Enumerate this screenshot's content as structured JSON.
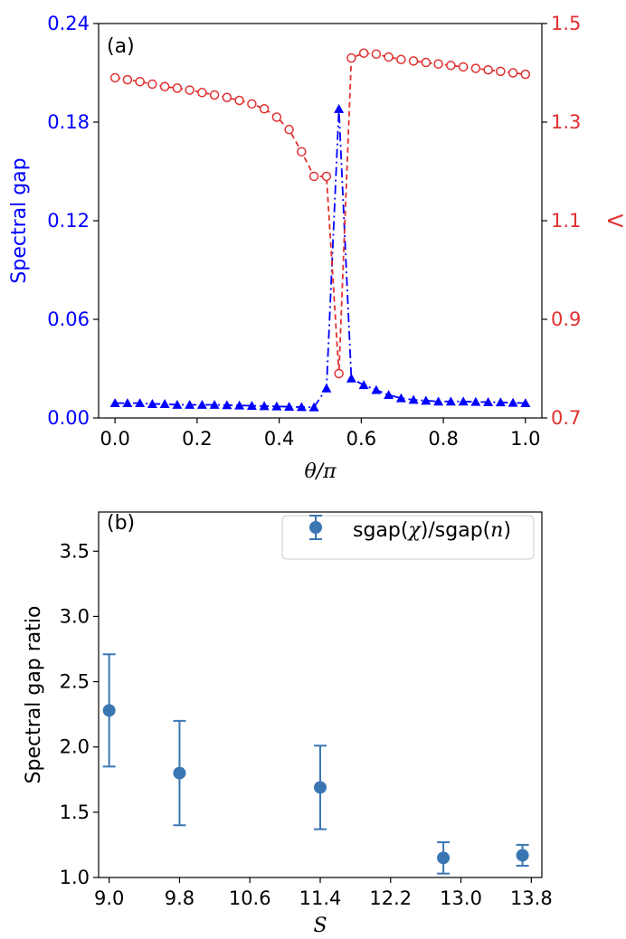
{
  "chart_data": [
    {
      "panel": "(a)",
      "type": "line",
      "xlabel": "θ/π",
      "x_ticks": [
        "0.0",
        "0.2",
        "0.4",
        "0.6",
        "0.8",
        "1.0"
      ],
      "xlim": [
        -0.04,
        1.04
      ],
      "left_axis": {
        "label": "Spectral gap",
        "color": "#0000ff",
        "ylim": [
          0.0,
          0.24
        ],
        "ticks": [
          "0.00",
          "0.06",
          "0.12",
          "0.18",
          "0.24"
        ]
      },
      "right_axis": {
        "label": "V",
        "color": "#e03030",
        "ylim": [
          0.7,
          1.5
        ],
        "ticks": [
          "0.7",
          "0.9",
          "1.1",
          "1.3",
          "1.5"
        ]
      },
      "series": [
        {
          "name": "Spectral gap",
          "axis": "left",
          "color": "#0000ff",
          "marker": "triangle",
          "x": [
            0.0,
            0.0303,
            0.0606,
            0.0909,
            0.1212,
            0.1515,
            0.1818,
            0.2121,
            0.2424,
            0.2727,
            0.303,
            0.3333,
            0.3636,
            0.3939,
            0.4242,
            0.4545,
            0.4848,
            0.5152,
            0.5455,
            0.5758,
            0.6061,
            0.6364,
            0.6667,
            0.697,
            0.7273,
            0.7576,
            0.7879,
            0.8182,
            0.8485,
            0.8788,
            0.9091,
            0.9394,
            0.9697,
            1.0
          ],
          "values": [
            0.009,
            0.009,
            0.009,
            0.0085,
            0.0085,
            0.008,
            0.008,
            0.008,
            0.008,
            0.0078,
            0.0076,
            0.0074,
            0.0072,
            0.007,
            0.0068,
            0.0066,
            0.0065,
            0.018,
            0.188,
            0.024,
            0.02,
            0.017,
            0.014,
            0.012,
            0.011,
            0.0105,
            0.01,
            0.01,
            0.01,
            0.0098,
            0.0096,
            0.0095,
            0.0092,
            0.009
          ]
        },
        {
          "name": "V",
          "axis": "right",
          "color": "#e03030",
          "marker": "circle-open",
          "x": [
            0.0,
            0.0303,
            0.0606,
            0.0909,
            0.1212,
            0.1515,
            0.1818,
            0.2121,
            0.2424,
            0.2727,
            0.303,
            0.3333,
            0.3636,
            0.3939,
            0.4242,
            0.4545,
            0.4848,
            0.5152,
            0.5455,
            0.5758,
            0.6061,
            0.6364,
            0.6667,
            0.697,
            0.7273,
            0.7576,
            0.7879,
            0.8182,
            0.8485,
            0.8788,
            0.9091,
            0.9394,
            0.9697,
            1.0
          ],
          "values": [
            1.39,
            1.386,
            1.382,
            1.377,
            1.372,
            1.369,
            1.365,
            1.36,
            1.355,
            1.35,
            1.344,
            1.337,
            1.327,
            1.31,
            1.285,
            1.24,
            1.19,
            1.19,
            0.79,
            1.43,
            1.44,
            1.438,
            1.432,
            1.427,
            1.424,
            1.421,
            1.418,
            1.415,
            1.412,
            1.409,
            1.406,
            1.403,
            1.4,
            1.397
          ]
        }
      ]
    },
    {
      "panel": "(b)",
      "type": "scatter",
      "xlabel": "S",
      "ylabel": "Spectral gap ratio",
      "xlim": [
        8.88,
        13.92
      ],
      "ylim": [
        1.0,
        3.8
      ],
      "x_ticks": [
        "9.0",
        "9.8",
        "10.6",
        "11.4",
        "12.2",
        "13.0",
        "13.8"
      ],
      "y_ticks": [
        "1.0",
        "1.5",
        "2.0",
        "2.5",
        "3.0",
        "3.5"
      ],
      "legend": {
        "position": "top-right",
        "label_prefix": "sgap(",
        "label_chi": "χ",
        "label_mid": ")/sgap(",
        "label_n": "n",
        "label_suffix": ")"
      },
      "color": "#3a77b2",
      "series": [
        {
          "name": "sgap(χ)/sgap(n)",
          "x": [
            9.0,
            9.8,
            11.4,
            12.8,
            13.7
          ],
          "values": [
            2.28,
            1.8,
            1.69,
            1.15,
            1.17
          ],
          "err_low": [
            1.85,
            1.4,
            1.37,
            1.03,
            1.09
          ],
          "err_high": [
            2.71,
            2.2,
            2.01,
            1.27,
            1.25
          ]
        }
      ]
    }
  ]
}
